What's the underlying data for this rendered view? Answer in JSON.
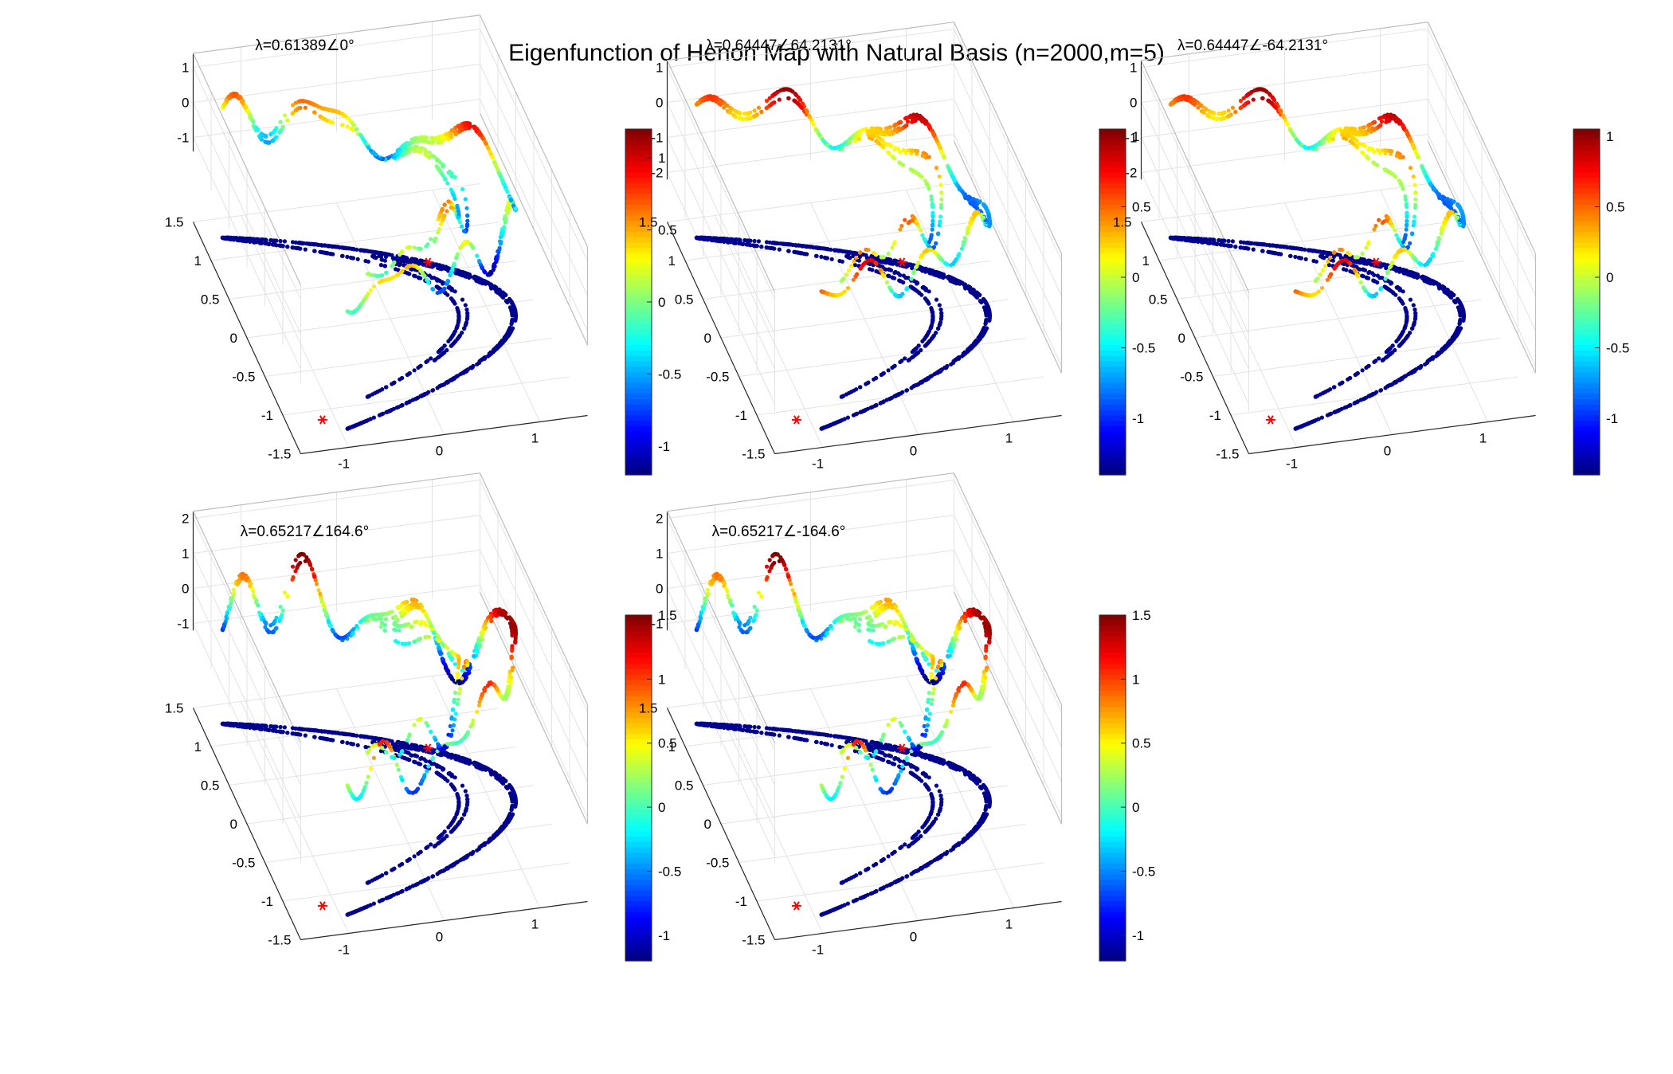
{
  "figure": {
    "title": "Eigenfunction of Henon Map with Natural Basis (n=2000,m=5)"
  },
  "colors": {
    "attractor_base": "#00008f",
    "fixed_point_marker": "#ff0000",
    "grid": "#e3e3e3",
    "axis": "#262626"
  },
  "chart_data": [
    {
      "type": "scatter",
      "title": "λ=0.61389∠0°",
      "xlim": [
        -1.5,
        1.5
      ],
      "ylim": [
        -1.5,
        1.5
      ],
      "zlim": [
        -1.4,
        1.4
      ],
      "x_ticks": [
        "-1",
        "0",
        "1"
      ],
      "y_ticks": [
        "-1.5",
        "-1",
        "-0.5",
        "0",
        "0.5",
        "1",
        "1.5"
      ],
      "z_ticks": [
        "1",
        "0",
        "-1"
      ],
      "z_tick_values": [
        1,
        0,
        -1
      ],
      "colorbar": {
        "range": [
          -1.2,
          1.2
        ],
        "ticks": [
          "1",
          "0.5",
          "0",
          "-0.5",
          "-1"
        ],
        "tick_values": [
          1,
          0.5,
          0,
          -0.5,
          -1
        ]
      },
      "wave": {
        "base": -0.05,
        "amp": 0.9,
        "scale": 1.0,
        "freq": 5.0,
        "phase": 0.3,
        "harmonic": 0.25
      },
      "fixed_points": [
        {
          "x": 0.63,
          "y": 0.19
        },
        {
          "x": -1.13,
          "y": -0.34
        }
      ]
    },
    {
      "type": "scatter",
      "title": "λ=0.64447∠64.2131°",
      "xlim": [
        -1.5,
        1.5
      ],
      "ylim": [
        -1.5,
        1.5
      ],
      "zlim": [
        -2.2,
        1.2
      ],
      "x_ticks": [
        "-1",
        "0",
        "1"
      ],
      "y_ticks": [
        "-1.5",
        "-1",
        "-0.5",
        "0",
        "0.5",
        "1",
        "1.5"
      ],
      "z_ticks": [
        "1",
        "0",
        "-1",
        "-2"
      ],
      "z_tick_values": [
        1,
        0,
        -1,
        -2
      ],
      "colorbar": {
        "range": [
          -1.4,
          1.05
        ],
        "ticks": [
          "1",
          "0.5",
          "0",
          "-0.5",
          "-1"
        ],
        "tick_values": [
          1,
          0.5,
          0,
          -0.5,
          -1
        ]
      },
      "wave": {
        "base": 0.15,
        "amp": 0.9,
        "scale": 1.0,
        "freq": 5.5,
        "phase": 1.1,
        "harmonic": 0.2
      },
      "fixed_points": [
        {
          "x": 0.63,
          "y": 0.19
        },
        {
          "x": -1.13,
          "y": -0.34
        }
      ]
    },
    {
      "type": "scatter",
      "title": "λ=0.64447∠-64.2131°",
      "xlim": [
        -1.5,
        1.5
      ],
      "ylim": [
        -1.5,
        1.5
      ],
      "zlim": [
        -2.2,
        1.2
      ],
      "x_ticks": [
        "-1",
        "0",
        "1"
      ],
      "y_ticks": [
        "-1.5",
        "-1",
        "-0.5",
        "0",
        "0.5",
        "1",
        "1.5"
      ],
      "z_ticks": [
        "1",
        "0",
        "-1",
        "-2"
      ],
      "z_tick_values": [
        1,
        0,
        -1,
        -2
      ],
      "colorbar": {
        "range": [
          -1.4,
          1.05
        ],
        "ticks": [
          "1",
          "0.5",
          "0",
          "-0.5",
          "-1"
        ],
        "tick_values": [
          1,
          0.5,
          0,
          -0.5,
          -1
        ]
      },
      "wave": {
        "base": 0.15,
        "amp": 0.9,
        "scale": 1.0,
        "freq": 5.5,
        "phase": 1.1,
        "harmonic": 0.2
      },
      "fixed_points": [
        {
          "x": 0.63,
          "y": 0.19
        },
        {
          "x": -1.13,
          "y": -0.34
        }
      ]
    },
    {
      "type": "scatter",
      "title": "λ=0.65217∠164.6°",
      "xlim": [
        -1.5,
        1.5
      ],
      "ylim": [
        -1.5,
        1.5
      ],
      "zlim": [
        -1.2,
        2.2
      ],
      "x_ticks": [
        "-1",
        "0",
        "1"
      ],
      "y_ticks": [
        "-1.5",
        "-1",
        "-0.5",
        "0",
        "0.5",
        "1",
        "1.5"
      ],
      "z_ticks": [
        "2",
        "1",
        "0",
        "-1"
      ],
      "z_tick_values": [
        2,
        1,
        0,
        -1
      ],
      "colorbar": {
        "range": [
          -1.2,
          1.5
        ],
        "ticks": [
          "1.5",
          "1",
          "0.5",
          "0",
          "-0.5",
          "-1"
        ],
        "tick_values": [
          1.5,
          1,
          0.5,
          0,
          -0.5,
          -1
        ]
      },
      "wave": {
        "base": 0.1,
        "amp": 1.2,
        "scale": 1.0,
        "freq": 7.0,
        "phase": 2.0,
        "harmonic": 0.3
      },
      "fixed_points": [
        {
          "x": 0.63,
          "y": 0.19
        },
        {
          "x": -1.13,
          "y": -0.34
        }
      ]
    },
    {
      "type": "scatter",
      "title": "λ=0.65217∠-164.6°",
      "xlim": [
        -1.5,
        1.5
      ],
      "ylim": [
        -1.5,
        1.5
      ],
      "zlim": [
        -1.2,
        2.2
      ],
      "x_ticks": [
        "-1",
        "0",
        "1"
      ],
      "y_ticks": [
        "-1.5",
        "-1",
        "-0.5",
        "0",
        "0.5",
        "1",
        "1.5"
      ],
      "z_ticks": [
        "2",
        "1",
        "0",
        "-1"
      ],
      "z_tick_values": [
        2,
        1,
        0,
        -1
      ],
      "colorbar": {
        "range": [
          -1.2,
          1.5
        ],
        "ticks": [
          "1.5",
          "1",
          "0.5",
          "0",
          "-0.5",
          "-1"
        ],
        "tick_values": [
          1.5,
          1,
          0.5,
          0,
          -0.5,
          -1
        ]
      },
      "wave": {
        "base": 0.1,
        "amp": 1.2,
        "scale": 1.0,
        "freq": 7.0,
        "phase": 2.0,
        "harmonic": 0.3
      },
      "fixed_points": [
        {
          "x": 0.63,
          "y": 0.19
        },
        {
          "x": -1.13,
          "y": -0.34
        }
      ]
    }
  ]
}
